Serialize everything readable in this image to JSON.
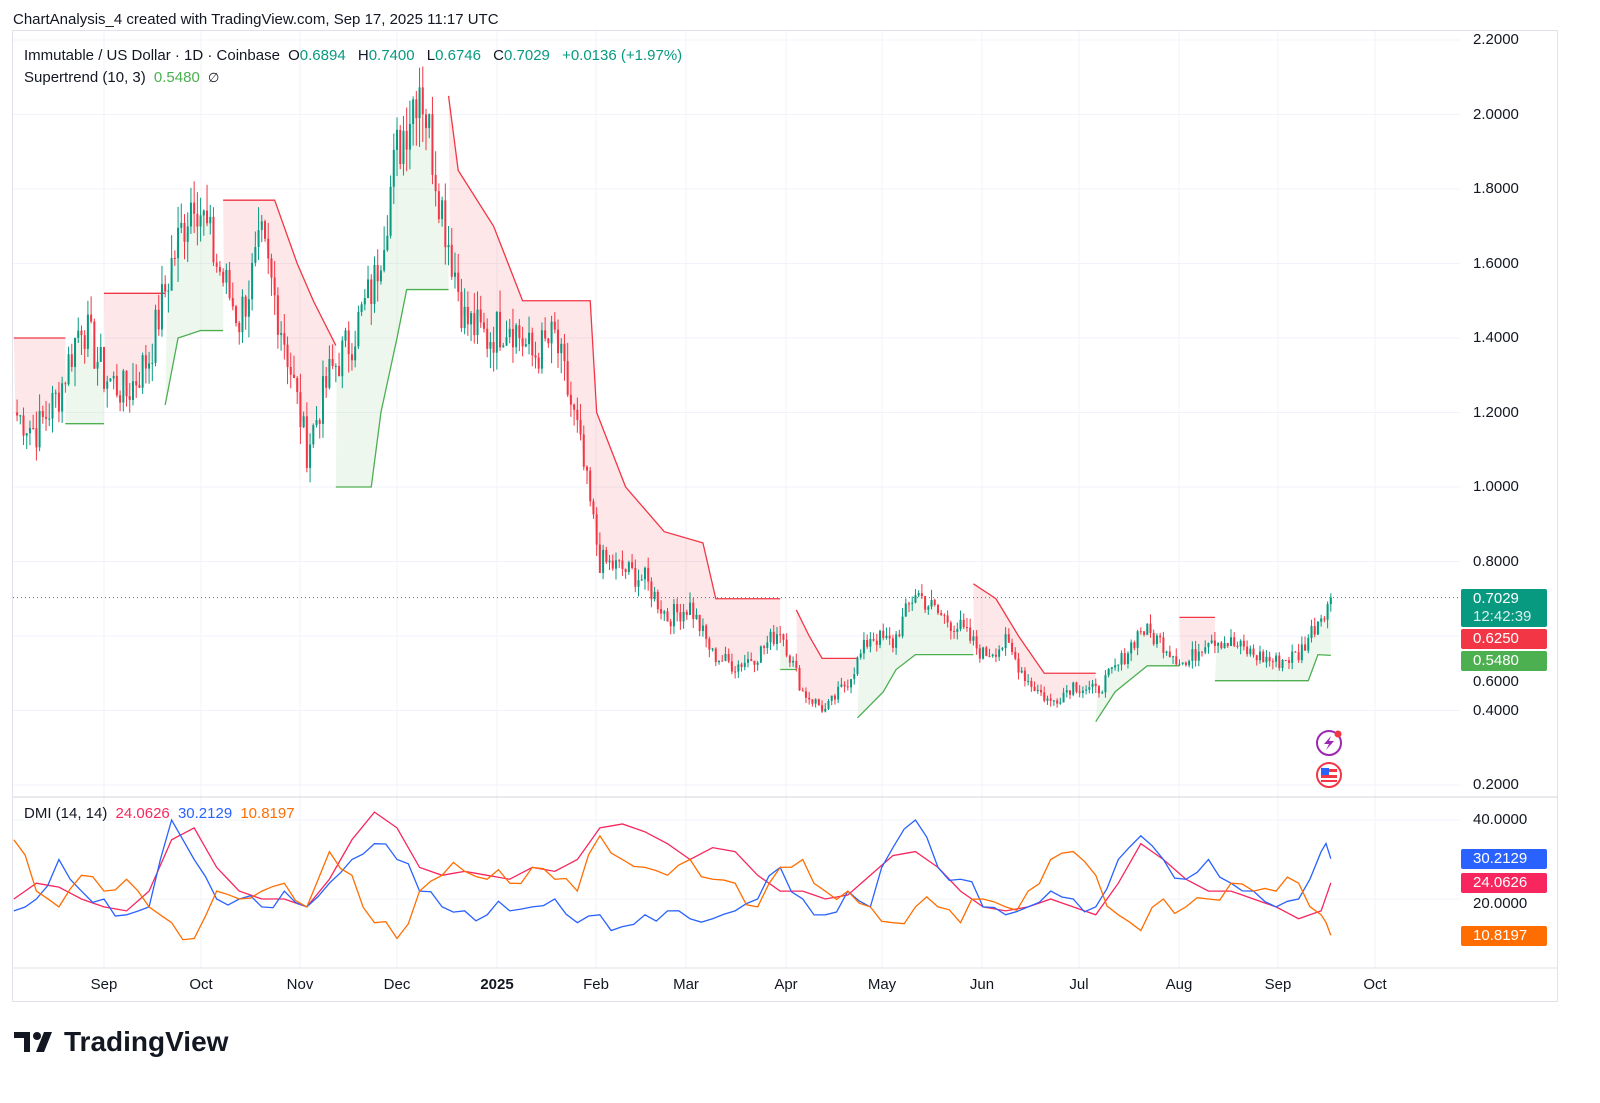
{
  "header": {
    "caption": "ChartAnalysis_4 created with TradingView.com, Sep 17, 2025 11:17 UTC"
  },
  "legend": {
    "symbol": "Immutable / US Dollar · 1D · Coinbase",
    "o_label": "O",
    "open": "0.6894",
    "h_label": "H",
    "high": "0.7400",
    "l_label": "L",
    "low": "0.6746",
    "c_label": "C",
    "close": "0.7029",
    "change": "+0.0136 (+1.97%)",
    "supertrend_label": "Supertrend (10, 3)",
    "supertrend_value": "0.5480",
    "supertrend_icon": "∅",
    "dmi_label": "DMI (14, 14)",
    "dmi_adx": "24.0626",
    "dmi_plus": "30.2129",
    "dmi_minus": "10.8197"
  },
  "price_tags": {
    "last": "0.7029",
    "countdown": "12:42:39",
    "red": "0.6250",
    "green": "0.5480"
  },
  "dmi_tags": {
    "plus": "30.2129",
    "adx": "24.0626",
    "minus": "10.8197"
  },
  "colors": {
    "up": "#089981",
    "down": "#f23645",
    "st_up": "#4caf50",
    "st_down": "#f23645",
    "adx": "#f7265e",
    "plus_di": "#2962ff",
    "minus_di": "#ff6d00"
  },
  "icons": [
    "lightning-event-icon",
    "us-flag-event-icon"
  ],
  "brand": "TradingView",
  "chart_data": [
    {
      "type": "candlestick",
      "title": "Immutable / US Dollar · 1D · Coinbase",
      "ylim": [
        0.2,
        2.2
      ],
      "yticks": [
        "2.2000",
        "2.0000",
        "1.8000",
        "1.6000",
        "1.4000",
        "1.2000",
        "1.0000",
        "0.8000",
        "0.6000",
        "0.4000",
        "0.2000"
      ],
      "xticks": [
        "Sep",
        "Oct",
        "Nov",
        "Dec",
        "2025",
        "Feb",
        "Mar",
        "Apr",
        "May",
        "Jun",
        "Jul",
        "Aug",
        "Sep",
        "Oct"
      ],
      "grid": true,
      "dates": [
        "2024-08-04",
        "2024-08-11",
        "2024-08-18",
        "2024-08-25",
        "2024-09-01",
        "2024-09-08",
        "2024-09-15",
        "2024-09-22",
        "2024-09-29",
        "2024-10-06",
        "2024-10-13",
        "2024-10-20",
        "2024-10-27",
        "2024-11-03",
        "2024-11-10",
        "2024-11-17",
        "2024-11-24",
        "2024-12-01",
        "2024-12-08",
        "2024-12-15",
        "2024-12-22",
        "2024-12-29",
        "2025-01-05",
        "2025-01-12",
        "2025-01-19",
        "2025-01-26",
        "2025-02-02",
        "2025-02-09",
        "2025-02-16",
        "2025-02-23",
        "2025-03-02",
        "2025-03-09",
        "2025-03-16",
        "2025-03-23",
        "2025-03-30",
        "2025-04-06",
        "2025-04-13",
        "2025-04-20",
        "2025-04-27",
        "2025-05-04",
        "2025-05-11",
        "2025-05-18",
        "2025-05-25",
        "2025-06-01",
        "2025-06-08",
        "2025-06-15",
        "2025-06-22",
        "2025-06-29",
        "2025-07-06",
        "2025-07-13",
        "2025-07-20",
        "2025-07-27",
        "2025-08-03",
        "2025-08-10",
        "2025-08-17",
        "2025-08-24",
        "2025-08-31",
        "2025-09-07",
        "2025-09-14",
        "2025-09-17"
      ],
      "close": [
        1.2,
        1.15,
        1.25,
        1.45,
        1.3,
        1.25,
        1.35,
        1.6,
        1.8,
        1.6,
        1.45,
        1.65,
        1.4,
        1.1,
        1.3,
        1.4,
        1.55,
        1.9,
        2.1,
        1.75,
        1.45,
        1.4,
        1.45,
        1.35,
        1.4,
        1.15,
        0.8,
        0.78,
        0.75,
        0.65,
        0.68,
        0.55,
        0.52,
        0.55,
        0.62,
        0.45,
        0.4,
        0.48,
        0.6,
        0.58,
        0.72,
        0.66,
        0.62,
        0.55,
        0.58,
        0.48,
        0.42,
        0.47,
        0.45,
        0.52,
        0.62,
        0.58,
        0.52,
        0.6,
        0.58,
        0.55,
        0.53,
        0.55,
        0.66,
        0.7029
      ],
      "last_price": 0.7029,
      "supertrend": [
        {
          "trend": "down",
          "points": [
            [
              "2024-08-04",
              1.4
            ],
            [
              "2024-08-20",
              1.4
            ]
          ]
        },
        {
          "trend": "up",
          "points": [
            [
              "2024-08-20",
              1.17
            ],
            [
              "2024-09-01",
              1.17
            ]
          ]
        },
        {
          "trend": "down",
          "points": [
            [
              "2024-09-01",
              1.52
            ],
            [
              "2024-09-20",
              1.52
            ]
          ]
        },
        {
          "trend": "up",
          "points": [
            [
              "2024-09-20",
              1.22
            ],
            [
              "2024-09-24",
              1.4
            ],
            [
              "2024-10-01",
              1.42
            ],
            [
              "2024-10-08",
              1.42
            ]
          ]
        },
        {
          "trend": "down",
          "points": [
            [
              "2024-10-08",
              1.77
            ],
            [
              "2024-10-24",
              1.77
            ],
            [
              "2024-10-31",
              1.6
            ],
            [
              "2024-11-05",
              1.5
            ],
            [
              "2024-11-12",
              1.38
            ]
          ]
        },
        {
          "trend": "up",
          "points": [
            [
              "2024-11-12",
              1.0
            ],
            [
              "2024-11-23",
              1.0
            ],
            [
              "2024-11-26",
              1.2
            ],
            [
              "2024-12-01",
              1.4
            ],
            [
              "2024-12-04",
              1.53
            ],
            [
              "2024-12-17",
              1.53
            ]
          ]
        },
        {
          "trend": "down",
          "points": [
            [
              "2024-12-17",
              2.05
            ],
            [
              "2024-12-20",
              1.85
            ],
            [
              "2024-12-31",
              1.7
            ],
            [
              "2025-01-09",
              1.5
            ],
            [
              "2025-01-30",
              1.5
            ],
            [
              "2025-02-01",
              1.2
            ],
            [
              "2025-02-10",
              1.0
            ],
            [
              "2025-02-22",
              0.88
            ],
            [
              "2025-03-06",
              0.85
            ],
            [
              "2025-03-10",
              0.7
            ],
            [
              "2025-03-30",
              0.7
            ]
          ]
        },
        {
          "trend": "up",
          "points": [
            [
              "2025-03-30",
              0.51
            ],
            [
              "2025-04-04",
              0.51
            ]
          ]
        },
        {
          "trend": "down",
          "points": [
            [
              "2025-04-04",
              0.67
            ],
            [
              "2025-04-08",
              0.6
            ],
            [
              "2025-04-12",
              0.54
            ],
            [
              "2025-04-23",
              0.54
            ]
          ]
        },
        {
          "trend": "up",
          "points": [
            [
              "2025-04-23",
              0.38
            ],
            [
              "2025-05-01",
              0.45
            ],
            [
              "2025-05-05",
              0.51
            ],
            [
              "2025-05-11",
              0.55
            ],
            [
              "2025-05-29",
              0.55
            ]
          ]
        },
        {
          "trend": "down",
          "points": [
            [
              "2025-05-29",
              0.74
            ],
            [
              "2025-06-05",
              0.7
            ],
            [
              "2025-06-12",
              0.6
            ],
            [
              "2025-06-20",
              0.5
            ],
            [
              "2025-07-06",
              0.5
            ]
          ]
        },
        {
          "trend": "up",
          "points": [
            [
              "2025-07-06",
              0.37
            ],
            [
              "2025-07-12",
              0.45
            ],
            [
              "2025-07-22",
              0.52
            ],
            [
              "2025-08-01",
              0.52
            ]
          ]
        },
        {
          "trend": "down",
          "points": [
            [
              "2025-08-01",
              0.65
            ],
            [
              "2025-08-12",
              0.65
            ]
          ]
        },
        {
          "trend": "up",
          "points": [
            [
              "2025-08-12",
              0.48
            ],
            [
              "2025-09-10",
              0.48
            ],
            [
              "2025-09-13",
              0.55
            ],
            [
              "2025-09-17",
              0.548
            ]
          ]
        }
      ]
    },
    {
      "type": "line",
      "title": "DMI (14, 14)",
      "ylim": [
        5,
        45
      ],
      "yticks": [
        "40.0000",
        "20.0000"
      ],
      "adx": [
        20,
        24,
        23,
        20,
        18,
        17,
        22,
        35,
        38,
        28,
        22,
        20,
        20,
        18,
        25,
        35,
        42,
        38,
        28,
        26,
        27,
        26,
        25,
        28,
        27,
        30,
        38,
        39,
        37,
        34,
        30,
        33,
        32,
        26,
        22,
        22,
        20,
        21,
        26,
        31,
        32,
        28,
        22,
        18,
        17,
        18,
        20,
        18,
        16,
        24,
        34,
        30,
        25,
        22,
        22,
        20,
        18,
        15,
        17,
        24.0626
      ],
      "plus_di": [
        17,
        20,
        30,
        22,
        20,
        16,
        18,
        40,
        30,
        20,
        20,
        18,
        22,
        18,
        24,
        30,
        34,
        30,
        22,
        18,
        17,
        16,
        17,
        18,
        20,
        14,
        16,
        13,
        16,
        17,
        15,
        15,
        17,
        20,
        28,
        20,
        16,
        22,
        18,
        33,
        40,
        28,
        25,
        18,
        16,
        18,
        22,
        20,
        18,
        30,
        36,
        30,
        25,
        30,
        24,
        22,
        18,
        20,
        32,
        30.2129
      ],
      "minus_di": [
        35,
        22,
        18,
        26,
        22,
        25,
        18,
        14,
        10,
        22,
        20,
        22,
        24,
        18,
        32,
        26,
        14,
        10,
        22,
        26,
        27,
        25,
        24,
        28,
        25,
        22,
        36,
        30,
        28,
        26,
        30,
        25,
        24,
        18,
        28,
        30,
        22,
        22,
        18,
        14,
        18,
        18,
        14,
        20,
        18,
        22,
        30,
        32,
        26,
        16,
        12,
        20,
        18,
        20,
        24,
        22,
        22,
        24,
        16,
        10.8197
      ]
    }
  ]
}
